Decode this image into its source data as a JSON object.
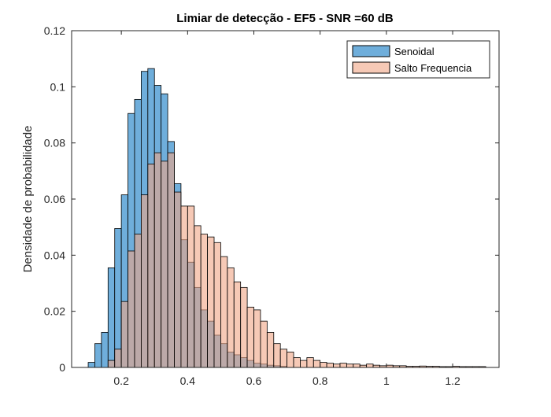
{
  "chart_data": {
    "type": "histogram",
    "title": "Limiar de detecção - EF5 - SNR =60 dB",
    "xlabel": "",
    "ylabel": "Densidade de probabilidade",
    "xlim": [
      0.05,
      1.34
    ],
    "ylim": [
      0,
      0.12
    ],
    "xticks": [
      0.2,
      0.4,
      0.6,
      0.8,
      1,
      1.2
    ],
    "xtick_labels": [
      "0.2",
      "0.4",
      "0.6",
      "0.8",
      "1",
      "1.2"
    ],
    "yticks": [
      0,
      0.02,
      0.04,
      0.06,
      0.08,
      0.1,
      0.12
    ],
    "ytick_labels": [
      "0",
      "0.02",
      "0.04",
      "0.06",
      "0.08",
      "0.1",
      "0.12"
    ],
    "grid": false,
    "legend_position": "top-right",
    "series": [
      {
        "name": "Senoidal",
        "color": "#0072BD",
        "fill": "#6FAEDB",
        "bin_start": 0.1,
        "bin_width": 0.02,
        "values": [
          0.0018,
          0.0085,
          0.0125,
          0.0355,
          0.0495,
          0.0615,
          0.0905,
          0.0955,
          0.1055,
          0.1065,
          0.1005,
          0.0975,
          0.0805,
          0.0655,
          0.0455,
          0.0375,
          0.0285,
          0.0205,
          0.0165,
          0.0115,
          0.0085,
          0.0055,
          0.0045,
          0.0035,
          0.0025,
          0.0015,
          0.0012,
          0.0008,
          0.0006,
          0.0004
        ]
      },
      {
        "name": "Salto Frequencia",
        "color": "#D95319",
        "fill": "#F0A586",
        "bin_start": 0.16,
        "bin_width": 0.02,
        "values": [
          0.0025,
          0.0065,
          0.0235,
          0.0415,
          0.0475,
          0.0615,
          0.0725,
          0.0765,
          0.0735,
          0.0765,
          0.0625,
          0.0575,
          0.0575,
          0.0505,
          0.0475,
          0.0465,
          0.0445,
          0.0395,
          0.0355,
          0.0305,
          0.0285,
          0.0215,
          0.0205,
          0.0165,
          0.0125,
          0.0085,
          0.0065,
          0.0055,
          0.0035,
          0.0025,
          0.0035,
          0.0025,
          0.0018,
          0.0015,
          0.0012,
          0.0015,
          0.0012,
          0.0012,
          0.0008,
          0.0012,
          0.0008,
          0.0006,
          0.0008,
          0.0006,
          0.0006,
          0.0004,
          0.0004,
          0.0005,
          0.0004,
          0.0004,
          0.0003,
          0.0003,
          0.0004,
          0.0003,
          0.0003,
          0.0003,
          0.0003
        ]
      }
    ]
  }
}
